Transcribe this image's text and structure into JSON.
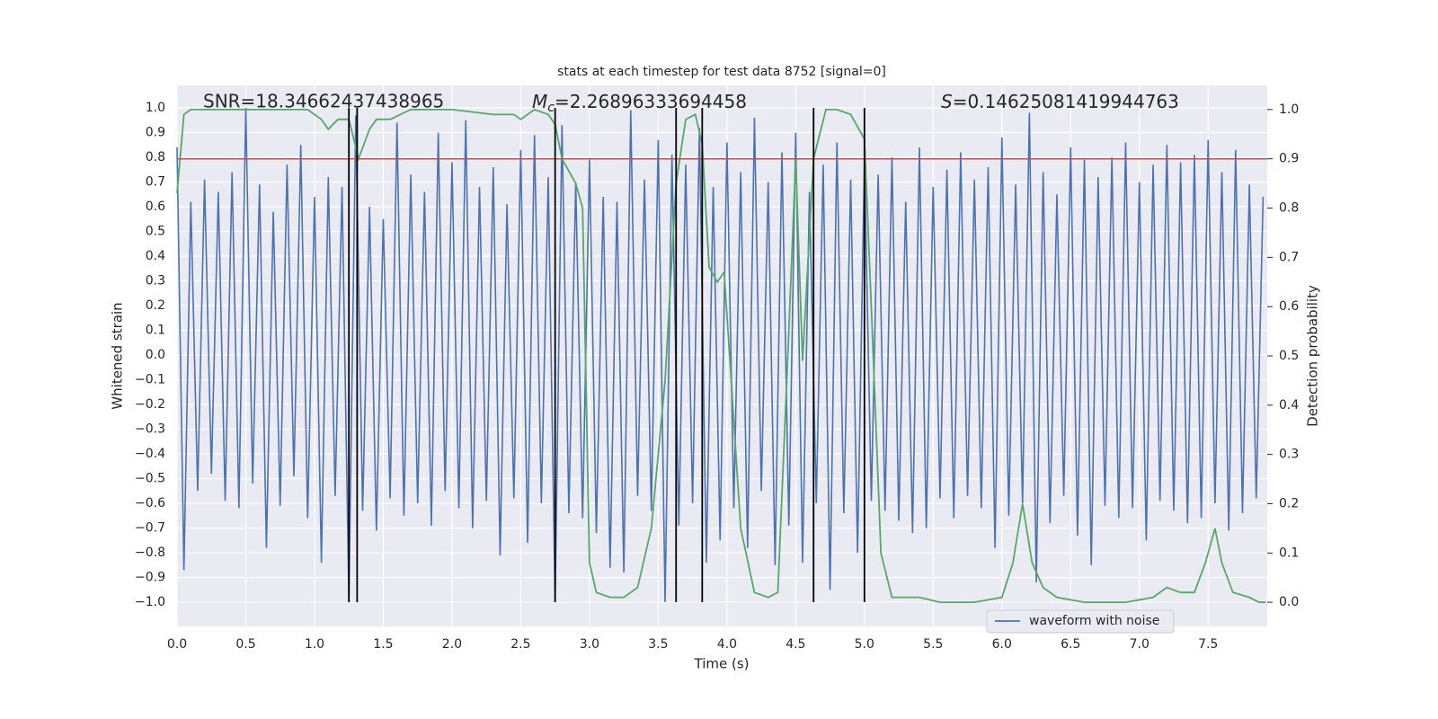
{
  "chart_data": {
    "type": "line",
    "title": "stats at each timestep for test data 8752 [signal=0]",
    "xlabel": "Time (s)",
    "ylabel": "Whitened strain",
    "y2label": "Detection probability",
    "snr_text": "SNR=18.34662437438965",
    "mc_symbol": "M",
    "mc_subscript": "c",
    "mc_text": "=2.26896333694458",
    "s_symbol": "S",
    "s_text": "=0.14625081419944763",
    "xlim": [
      0,
      7.93
    ],
    "ylim": [
      -1.098,
      1.091
    ],
    "y2lim": [
      -0.049,
      1.049
    ],
    "xticks": [
      {
        "value": 0,
        "label": "0.0"
      },
      {
        "value": 0.5,
        "label": "0.5"
      },
      {
        "value": 1,
        "label": "1.0"
      },
      {
        "value": 1.5,
        "label": "1.5"
      },
      {
        "value": 2,
        "label": "2.0"
      },
      {
        "value": 2.5,
        "label": "2.5"
      },
      {
        "value": 3,
        "label": "3.0"
      },
      {
        "value": 3.5,
        "label": "3.5"
      },
      {
        "value": 4,
        "label": "4.0"
      },
      {
        "value": 4.5,
        "label": "4.5"
      },
      {
        "value": 5,
        "label": "5.0"
      },
      {
        "value": 5.5,
        "label": "5.5"
      },
      {
        "value": 6,
        "label": "6.0"
      },
      {
        "value": 6.5,
        "label": "6.5"
      },
      {
        "value": 7,
        "label": "7.0"
      },
      {
        "value": 7.5,
        "label": "7.5"
      }
    ],
    "yticks": [
      {
        "value": -1,
        "label": "−1.0"
      },
      {
        "value": -0.9,
        "label": "−0.9"
      },
      {
        "value": -0.8,
        "label": "−0.8"
      },
      {
        "value": -0.7,
        "label": "−0.7"
      },
      {
        "value": -0.6,
        "label": "−0.6"
      },
      {
        "value": -0.5,
        "label": "−0.5"
      },
      {
        "value": -0.4,
        "label": "−0.4"
      },
      {
        "value": -0.3,
        "label": "−0.3"
      },
      {
        "value": -0.2,
        "label": "−0.2"
      },
      {
        "value": -0.1,
        "label": "−0.1"
      },
      {
        "value": 0,
        "label": "0.0"
      },
      {
        "value": 0.1,
        "label": "0.1"
      },
      {
        "value": 0.2,
        "label": "0.2"
      },
      {
        "value": 0.3,
        "label": "0.3"
      },
      {
        "value": 0.4,
        "label": "0.4"
      },
      {
        "value": 0.5,
        "label": "0.5"
      },
      {
        "value": 0.6,
        "label": "0.6"
      },
      {
        "value": 0.7,
        "label": "0.7"
      },
      {
        "value": 0.8,
        "label": "0.8"
      },
      {
        "value": 0.9,
        "label": "0.9"
      },
      {
        "value": 1,
        "label": "1.0"
      }
    ],
    "y2ticks": [
      {
        "value": 0,
        "label": "0.0"
      },
      {
        "value": 0.1,
        "label": "0.1"
      },
      {
        "value": 0.2,
        "label": "0.2"
      },
      {
        "value": 0.3,
        "label": "0.3"
      },
      {
        "value": 0.4,
        "label": "0.4"
      },
      {
        "value": 0.5,
        "label": "0.5"
      },
      {
        "value": 0.6,
        "label": "0.6"
      },
      {
        "value": 0.7,
        "label": "0.7"
      },
      {
        "value": 0.8,
        "label": "0.8"
      },
      {
        "value": 0.9,
        "label": "0.9"
      },
      {
        "value": 1,
        "label": "1.0"
      }
    ],
    "grid": true,
    "legend": "lower right",
    "background": "#eaeaf2",
    "series": [
      {
        "name": "waveform with noise",
        "color": "#4c72b0",
        "x": [
          0.0,
          0.05,
          0.1,
          0.15,
          0.2,
          0.25,
          0.3,
          0.35,
          0.4,
          0.45,
          0.5,
          0.55,
          0.6,
          0.65,
          0.7,
          0.75,
          0.8,
          0.85,
          0.9,
          0.95,
          1.0,
          1.05,
          1.1,
          1.15,
          1.2,
          1.25,
          1.3,
          1.35,
          1.4,
          1.45,
          1.5,
          1.55,
          1.6,
          1.65,
          1.7,
          1.75,
          1.8,
          1.85,
          1.9,
          1.95,
          2.0,
          2.05,
          2.1,
          2.15,
          2.2,
          2.25,
          2.3,
          2.35,
          2.4,
          2.45,
          2.5,
          2.55,
          2.6,
          2.65,
          2.7,
          2.75,
          2.8,
          2.85,
          2.9,
          2.95,
          3.0,
          3.05,
          3.1,
          3.15,
          3.2,
          3.25,
          3.3,
          3.35,
          3.4,
          3.45,
          3.5,
          3.55,
          3.6,
          3.65,
          3.7,
          3.75,
          3.8,
          3.85,
          3.9,
          3.95,
          4.0,
          4.05,
          4.1,
          4.15,
          4.2,
          4.25,
          4.3,
          4.35,
          4.4,
          4.45,
          4.5,
          4.55,
          4.6,
          4.65,
          4.7,
          4.75,
          4.8,
          4.85,
          4.9,
          4.95,
          5.0,
          5.05,
          5.1,
          5.15,
          5.2,
          5.25,
          5.3,
          5.35,
          5.4,
          5.45,
          5.5,
          5.55,
          5.6,
          5.65,
          5.7,
          5.75,
          5.8,
          5.85,
          5.9,
          5.95,
          6.0,
          6.05,
          6.1,
          6.15,
          6.2,
          6.25,
          6.3,
          6.35,
          6.4,
          6.45,
          6.5,
          6.55,
          6.6,
          6.65,
          6.7,
          6.75,
          6.8,
          6.85,
          6.9,
          6.95,
          7.0,
          7.05,
          7.1,
          7.15,
          7.2,
          7.25,
          7.3,
          7.35,
          7.4,
          7.45,
          7.5,
          7.55,
          7.6,
          7.65,
          7.7,
          7.75,
          7.8,
          7.85,
          7.9
        ],
        "values": [
          0.84,
          -0.87,
          0.62,
          -0.55,
          0.71,
          -0.48,
          0.66,
          -0.59,
          0.74,
          -0.62,
          1.0,
          -0.52,
          0.69,
          -0.78,
          0.58,
          -0.61,
          0.77,
          -0.49,
          0.85,
          -0.66,
          0.64,
          -0.84,
          0.72,
          -0.57,
          0.68,
          -0.99,
          0.97,
          -0.63,
          0.6,
          -0.71,
          0.55,
          -0.58,
          0.94,
          -0.65,
          0.73,
          -0.6,
          0.66,
          -0.69,
          0.9,
          -0.55,
          0.78,
          -0.62,
          0.95,
          -0.7,
          0.68,
          -0.59,
          0.76,
          -0.81,
          0.61,
          -0.58,
          0.83,
          -0.76,
          0.89,
          -0.6,
          0.72,
          -1.0,
          0.93,
          -0.64,
          0.7,
          -0.66,
          0.79,
          -0.72,
          0.64,
          -0.86,
          0.62,
          -0.88,
          0.99,
          -0.57,
          0.71,
          -0.63,
          0.87,
          -1.0,
          0.81,
          -0.69,
          0.77,
          -0.6,
          0.92,
          -0.84,
          0.68,
          -0.75,
          0.86,
          -0.62,
          0.74,
          -0.78,
          0.96,
          -0.55,
          0.7,
          -0.85,
          0.82,
          -0.69,
          0.9,
          -0.84,
          0.66,
          -0.6,
          0.77,
          -0.95,
          0.86,
          -0.64,
          0.71,
          -0.8,
          0.79,
          -0.59,
          0.73,
          -0.63,
          0.8,
          -0.67,
          0.62,
          -0.72,
          0.84,
          -0.7,
          0.68,
          -0.58,
          0.75,
          -0.66,
          0.82,
          -0.57,
          0.71,
          -0.62,
          0.76,
          -0.78,
          0.88,
          -0.65,
          0.69,
          -0.6,
          0.98,
          -0.92,
          0.74,
          -0.68,
          0.65,
          -0.57,
          0.84,
          -0.73,
          0.79,
          -0.85,
          0.72,
          -0.61,
          0.8,
          -0.66,
          0.86,
          -0.62,
          0.7,
          -0.75,
          0.77,
          -0.59,
          0.85,
          -0.63,
          0.78,
          -0.68,
          0.81,
          -0.66,
          0.87,
          -0.6,
          0.74,
          -0.71,
          0.83,
          -0.64,
          0.69,
          -0.58,
          0.64
        ]
      },
      {
        "color": "#55a868",
        "axis": "y2",
        "x": [
          0.0,
          0.05,
          0.1,
          0.3,
          0.6,
          0.95,
          1.05,
          1.1,
          1.17,
          1.25,
          1.32,
          1.4,
          1.45,
          1.55,
          1.7,
          2.0,
          2.3,
          2.45,
          2.5,
          2.6,
          2.7,
          2.75,
          2.8,
          2.9,
          2.95,
          3.0,
          3.05,
          3.15,
          3.25,
          3.35,
          3.45,
          3.55,
          3.63,
          3.7,
          3.77,
          3.82,
          3.87,
          3.93,
          3.98,
          4.1,
          4.2,
          4.3,
          4.37,
          4.45,
          4.5,
          4.55,
          4.63,
          4.72,
          4.8,
          4.9,
          5.0,
          5.05,
          5.12,
          5.2,
          5.3,
          5.4,
          5.55,
          5.8,
          6.0,
          6.08,
          6.15,
          6.22,
          6.3,
          6.4,
          6.6,
          6.9,
          7.1,
          7.2,
          7.3,
          7.4,
          7.48,
          7.55,
          7.6,
          7.68,
          7.8,
          7.87,
          7.92
        ],
        "values": [
          0.83,
          0.99,
          1.0,
          1.0,
          1.0,
          1.0,
          0.98,
          0.96,
          0.98,
          0.98,
          0.9,
          0.96,
          0.98,
          0.98,
          1.0,
          1.0,
          0.99,
          0.99,
          0.98,
          1.0,
          0.99,
          0.97,
          0.9,
          0.85,
          0.8,
          0.08,
          0.02,
          0.01,
          0.01,
          0.03,
          0.15,
          0.45,
          0.85,
          0.98,
          0.99,
          0.93,
          0.68,
          0.65,
          0.67,
          0.15,
          0.02,
          0.01,
          0.02,
          0.55,
          0.9,
          0.49,
          0.9,
          1.0,
          1.0,
          0.99,
          0.94,
          0.6,
          0.1,
          0.01,
          0.01,
          0.01,
          0.0,
          0.0,
          0.01,
          0.08,
          0.2,
          0.08,
          0.03,
          0.01,
          0.0,
          0.0,
          0.01,
          0.03,
          0.02,
          0.02,
          0.08,
          0.15,
          0.08,
          0.02,
          0.01,
          0.0,
          0.0
        ]
      }
    ],
    "threshold": {
      "value": 0.9,
      "axis": "y2",
      "color": "#c44e52"
    },
    "vlines": {
      "x": [
        1.25,
        1.31,
        2.75,
        3.63,
        3.82,
        4.63,
        5.0
      ],
      "ymin": -1,
      "ymax": 1,
      "color": "#000000"
    }
  }
}
